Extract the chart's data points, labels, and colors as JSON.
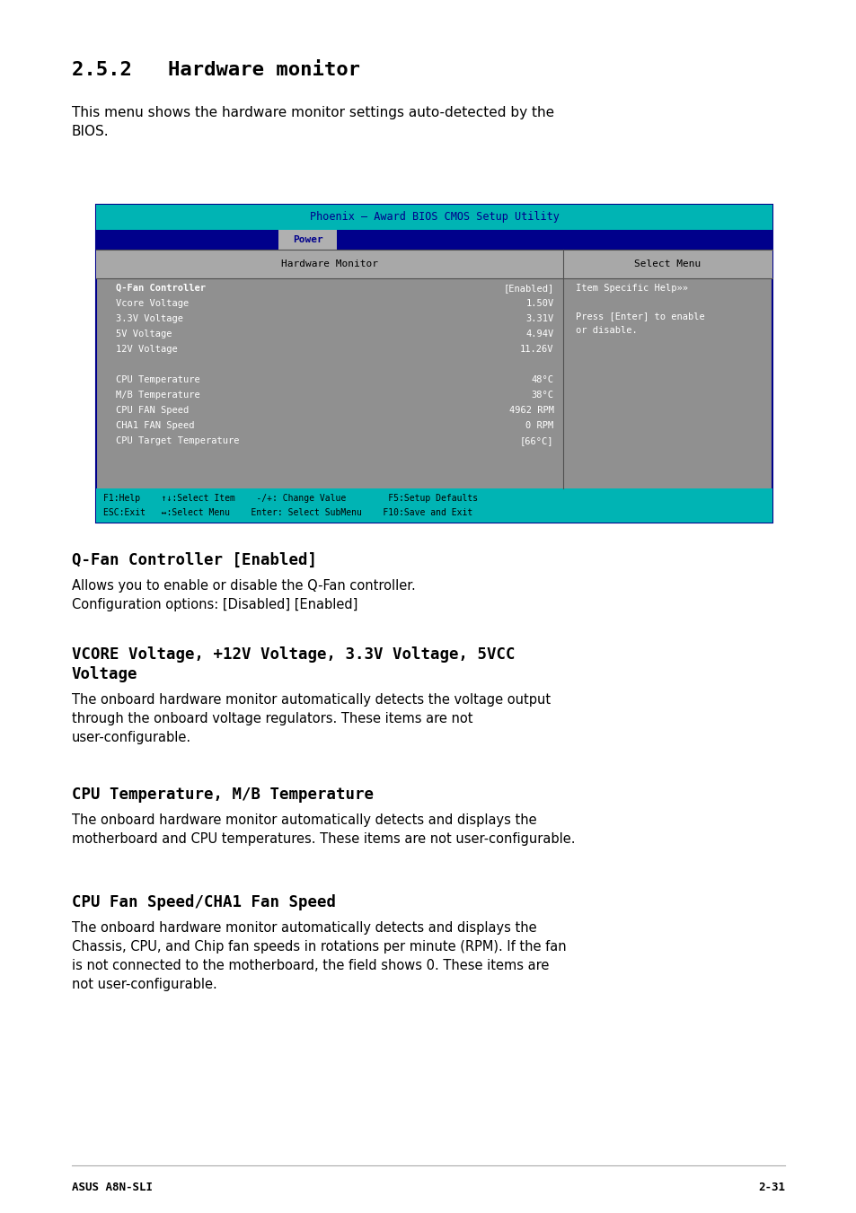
{
  "page_bg": "#ffffff",
  "section_title": "2.5.2   Hardware monitor",
  "intro_text": "This menu shows the hardware monitor settings auto-detected by the\nBIOS.",
  "bios_title_bar_text": "Phoenix – Award BIOS CMOS Setup Utility",
  "bios_title_bar_bg": "#00b4b4",
  "bios_title_bar_fg": "#00008b",
  "bios_menu_bar_bg": "#00008b",
  "bios_menu_bar_text": "Power",
  "bios_menu_bar_fg": "#ffffff",
  "bios_body_bg": "#909090",
  "bios_body_fg": "#ffffff",
  "bios_header_bg": "#a0a0a0",
  "bios_header_left": "Hardware Monitor",
  "bios_header_right": "Select Menu",
  "bios_rows": [
    {
      "label": "Q-Fan Controller",
      "value": "[Enabled]",
      "bold": true
    },
    {
      "label": "Vcore Voltage",
      "value": "1.50V",
      "bold": false
    },
    {
      "label": "3.3V Voltage",
      "value": "3.31V",
      "bold": false
    },
    {
      "label": "5V Voltage",
      "value": "4.94V",
      "bold": false
    },
    {
      "label": "12V Voltage",
      "value": "11.26V",
      "bold": false
    },
    {
      "label": "",
      "value": "",
      "bold": false
    },
    {
      "label": "CPU Temperature",
      "value": "48°C",
      "bold": false
    },
    {
      "label": "M/B Temperature",
      "value": "38°C",
      "bold": false
    },
    {
      "label": "CPU FAN Speed",
      "value": "4962 RPM",
      "bold": false
    },
    {
      "label": "CHA1 FAN Speed",
      "value": "0 RPM",
      "bold": false
    },
    {
      "label": "CPU Target Temperature",
      "value": "[66°C]",
      "bold": false
    }
  ],
  "bios_help_text": "Item Specific Help»»\n\nPress [Enter] to enable\nor disable.",
  "bios_footer_line1": "F1:Help    ↑↓:Select Item    -/+: Change Value        F5:Setup Defaults",
  "bios_footer_line2": "ESC:Exit   ↔:Select Menu    Enter: Select SubMenu    F10:Save and Exit",
  "bios_footer_bg": "#00b4b4",
  "bios_footer_fg": "#000000",
  "bios_border_color": "#00008b",
  "sections": [
    {
      "title": "Q-Fan Controller [Enabled]",
      "body": "Allows you to enable or disable the Q-Fan controller.\nConfiguration options: [Disabled] [Enabled]"
    },
    {
      "title": "VCORE Voltage, +12V Voltage, 3.3V Voltage, 5VCC\nVoltage",
      "body": "The onboard hardware monitor automatically detects the voltage output\nthrough the onboard voltage regulators. These items are not\nuser-configurable."
    },
    {
      "title": "CPU Temperature, M/B Temperature",
      "body": "The onboard hardware monitor automatically detects and displays the\nmotherboard and CPU temperatures. These items are not user-configurable."
    },
    {
      "title": "CPU Fan Speed/CHA1 Fan Speed",
      "body": "The onboard hardware monitor automatically detects and displays the\nChassis, CPU, and Chip fan speeds in rotations per minute (RPM). If the fan\nis not connected to the motherboard, the field shows 0. These items are\nnot user-configurable."
    }
  ],
  "footer_left": "ASUS A8N-SLI",
  "footer_right": "2-31"
}
